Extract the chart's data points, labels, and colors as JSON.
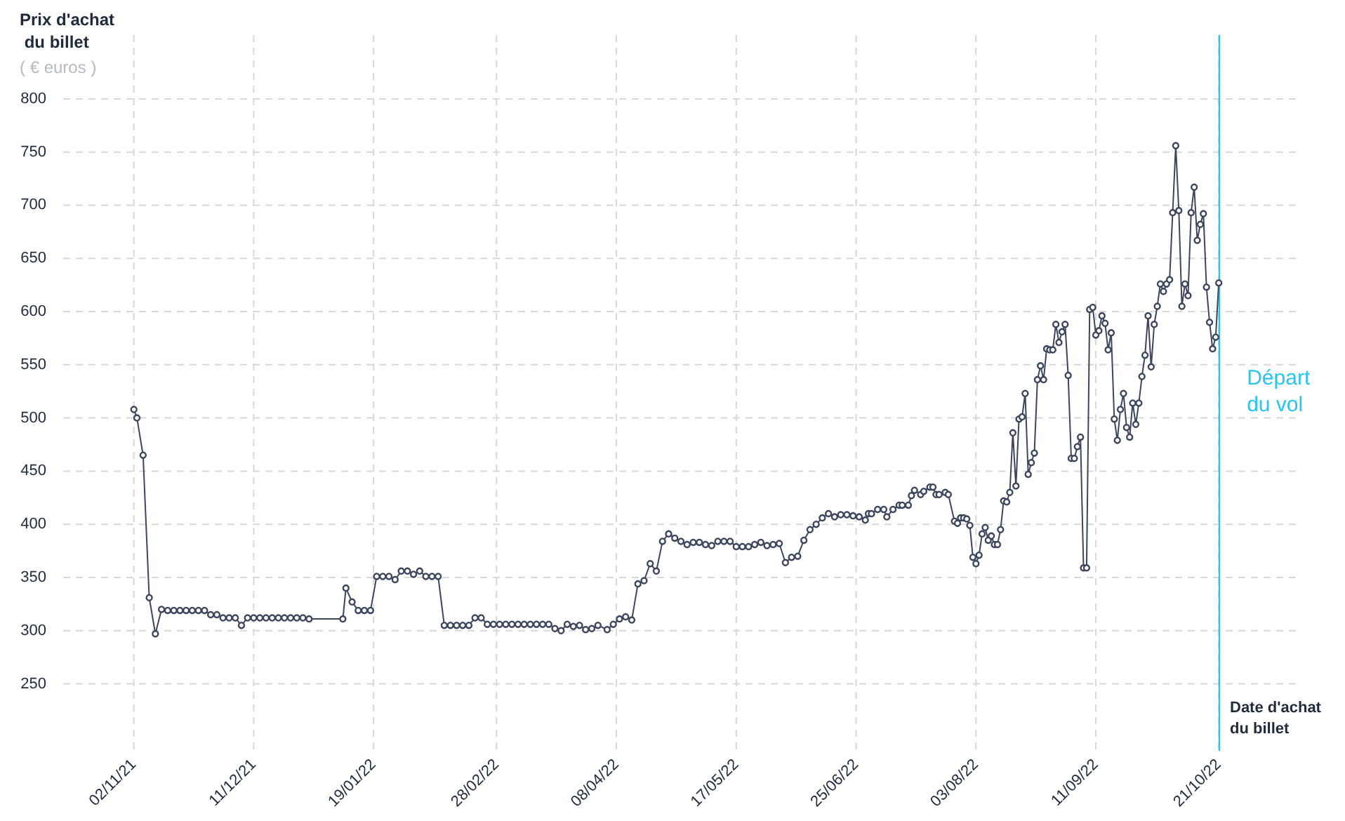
{
  "chart_data": {
    "type": "line",
    "ylabel": "Prix d'achat du billet",
    "xlabel": "Date d'achat du billet",
    "annotations": [
      "( € euros )"
    ],
    "color": "#3b465e",
    "marker": "circle",
    "line_style": "solid",
    "grid": true,
    "x": [
      "2021-11-02",
      "2021-11-03",
      "2021-11-05",
      "2021-11-07",
      "2021-11-09",
      "2021-11-11",
      "2021-11-13",
      "2021-11-15",
      "2021-11-17",
      "2021-11-19",
      "2021-11-21",
      "2021-11-23",
      "2021-11-25",
      "2021-11-27",
      "2021-11-29",
      "2021-12-01",
      "2021-12-03",
      "2021-12-05",
      "2021-12-07",
      "2021-12-09",
      "2021-12-11",
      "2021-12-13",
      "2021-12-15",
      "2021-12-17",
      "2021-12-19",
      "2021-12-21",
      "2021-12-23",
      "2021-12-25",
      "2021-12-27",
      "2021-12-29",
      "2022-01-09",
      "2022-01-10",
      "2022-01-12",
      "2022-01-14",
      "2022-01-16",
      "2022-01-18",
      "2022-01-20",
      "2022-01-22",
      "2022-01-24",
      "2022-01-26",
      "2022-01-28",
      "2022-01-30",
      "2022-02-01",
      "2022-02-03",
      "2022-02-05",
      "2022-02-07",
      "2022-02-09",
      "2022-02-11",
      "2022-02-13",
      "2022-02-15",
      "2022-02-17",
      "2022-02-19",
      "2022-02-21",
      "2022-02-23",
      "2022-02-25",
      "2022-02-27",
      "2022-03-01",
      "2022-03-03",
      "2022-03-05",
      "2022-03-07",
      "2022-03-09",
      "2022-03-11",
      "2022-03-13",
      "2022-03-15",
      "2022-03-17",
      "2022-03-19",
      "2022-03-21",
      "2022-03-23",
      "2022-03-25",
      "2022-03-27",
      "2022-03-29",
      "2022-03-31",
      "2022-04-02",
      "2022-04-05",
      "2022-04-07",
      "2022-04-09",
      "2022-04-11",
      "2022-04-13",
      "2022-04-15",
      "2022-04-17",
      "2022-04-19",
      "2022-04-21",
      "2022-04-23",
      "2022-04-25",
      "2022-04-27",
      "2022-04-29",
      "2022-05-01",
      "2022-05-03",
      "2022-05-05",
      "2022-05-07",
      "2022-05-09",
      "2022-05-11",
      "2022-05-13",
      "2022-05-15",
      "2022-05-17",
      "2022-05-19",
      "2022-05-21",
      "2022-05-23",
      "2022-05-25",
      "2022-05-27",
      "2022-05-29",
      "2022-05-31",
      "2022-06-02",
      "2022-06-04",
      "2022-06-06",
      "2022-06-08",
      "2022-06-10",
      "2022-06-12",
      "2022-06-14",
      "2022-06-16",
      "2022-06-18",
      "2022-06-20",
      "2022-06-22",
      "2022-06-24",
      "2022-06-26",
      "2022-06-28",
      "2022-06-29",
      "2022-06-30",
      "2022-07-02",
      "2022-07-04",
      "2022-07-05",
      "2022-07-07",
      "2022-07-09",
      "2022-07-10",
      "2022-07-12",
      "2022-07-13",
      "2022-07-14",
      "2022-07-16",
      "2022-07-17",
      "2022-07-19",
      "2022-07-20",
      "2022-07-21",
      "2022-07-22",
      "2022-07-24",
      "2022-07-25",
      "2022-07-27",
      "2022-07-28",
      "2022-07-29",
      "2022-07-30",
      "2022-07-31",
      "2022-08-01",
      "2022-08-02",
      "2022-08-03",
      "2022-08-04",
      "2022-08-05",
      "2022-08-06",
      "2022-08-07",
      "2022-08-08",
      "2022-08-09",
      "2022-08-10",
      "2022-08-11",
      "2022-08-12",
      "2022-08-13",
      "2022-08-14",
      "2022-08-15",
      "2022-08-16",
      "2022-08-17",
      "2022-08-18",
      "2022-08-19",
      "2022-08-20",
      "2022-08-21",
      "2022-08-22",
      "2022-08-23",
      "2022-08-24",
      "2022-08-25",
      "2022-08-26",
      "2022-08-27",
      "2022-08-28",
      "2022-08-29",
      "2022-08-30",
      "2022-08-31",
      "2022-09-01",
      "2022-09-02",
      "2022-09-03",
      "2022-09-04",
      "2022-09-05",
      "2022-09-06",
      "2022-09-07",
      "2022-09-08",
      "2022-09-09",
      "2022-09-10",
      "2022-09-11",
      "2022-09-12",
      "2022-09-13",
      "2022-09-14",
      "2022-09-15",
      "2022-09-16",
      "2022-09-17",
      "2022-09-18",
      "2022-09-19",
      "2022-09-20",
      "2022-09-21",
      "2022-09-22",
      "2022-09-23",
      "2022-09-24",
      "2022-09-25",
      "2022-09-26",
      "2022-09-27",
      "2022-09-28",
      "2022-09-29",
      "2022-09-30",
      "2022-10-01",
      "2022-10-02",
      "2022-10-03",
      "2022-10-04",
      "2022-10-05",
      "2022-10-06",
      "2022-10-07",
      "2022-10-08",
      "2022-10-09",
      "2022-10-10",
      "2022-10-11",
      "2022-10-12",
      "2022-10-13",
      "2022-10-14",
      "2022-10-15",
      "2022-10-16",
      "2022-10-17",
      "2022-10-18",
      "2022-10-19",
      "2022-10-20",
      "2022-10-21"
    ],
    "values": [
      508,
      500,
      465,
      331,
      297,
      320,
      319,
      319,
      319,
      319,
      319,
      319,
      319,
      315,
      315,
      312,
      312,
      312,
      305,
      312,
      312,
      312,
      312,
      312,
      312,
      312,
      312,
      312,
      312,
      311,
      311,
      340,
      327,
      319,
      319,
      319,
      351,
      351,
      351,
      348,
      356,
      356,
      353,
      356,
      351,
      351,
      351,
      305,
      305,
      305,
      305,
      305,
      312,
      312,
      306,
      306,
      306,
      306,
      306,
      306,
      306,
      306,
      306,
      306,
      306,
      302,
      300,
      306,
      304,
      305,
      301,
      302,
      305,
      301,
      306,
      311,
      313,
      310,
      344,
      347,
      363,
      356,
      384,
      391,
      387,
      384,
      381,
      383,
      383,
      381,
      380,
      384,
      384,
      384,
      379,
      379,
      379,
      381,
      383,
      380,
      381,
      382,
      364,
      369,
      370,
      385,
      395,
      400,
      406,
      410,
      407,
      409,
      409,
      408,
      407,
      404,
      410,
      410,
      414,
      414,
      407,
      414,
      418,
      418,
      418,
      427,
      432,
      428,
      431,
      435,
      435,
      428,
      428,
      430,
      428,
      403,
      401,
      406,
      406,
      405,
      399,
      369,
      363,
      371,
      391,
      397,
      385,
      389,
      381,
      381,
      395,
      422,
      421,
      430,
      486,
      436,
      499,
      501,
      523,
      447,
      458,
      467,
      536,
      549,
      536,
      565,
      564,
      564,
      588,
      571,
      581,
      588,
      540,
      462,
      462,
      473,
      482,
      359,
      359,
      602,
      604,
      578,
      582,
      596,
      589,
      564,
      580,
      499,
      479,
      508,
      523,
      491,
      482,
      514,
      494,
      514,
      539,
      559,
      596,
      548,
      588,
      605,
      626,
      619,
      626,
      630,
      693,
      756,
      695,
      605,
      626,
      615,
      693,
      717,
      667,
      682,
      692,
      623,
      590,
      565,
      576,
      627
    ],
    "xlim": [
      "2021-10-10",
      "2022-11-16"
    ],
    "xticks": [
      {
        "value": "2021-11-02",
        "label": "02/11/21"
      },
      {
        "value": "2021-12-11",
        "label": "11/12/21"
      },
      {
        "value": "2022-01-19",
        "label": "19/01/22"
      },
      {
        "value": "2022-02-28",
        "label": "28/02/22"
      },
      {
        "value": "2022-04-08",
        "label": "08/04/22"
      },
      {
        "value": "2022-05-17",
        "label": "17/05/22"
      },
      {
        "value": "2022-06-25",
        "label": "25/06/22"
      },
      {
        "value": "2022-08-03",
        "label": "03/08/22"
      },
      {
        "value": "2022-09-11",
        "label": "11/09/22"
      },
      {
        "value": "2022-10-21",
        "label": "21/10/22"
      }
    ],
    "ylim": [
      187,
      860
    ],
    "yticks": [
      250,
      300,
      350,
      400,
      450,
      500,
      550,
      600,
      650,
      700,
      750,
      800
    ],
    "ref_lines": [
      {
        "axis": "x",
        "value": "2022-10-21",
        "label": "Départ du vol",
        "color": "#29c4f0"
      }
    ]
  }
}
